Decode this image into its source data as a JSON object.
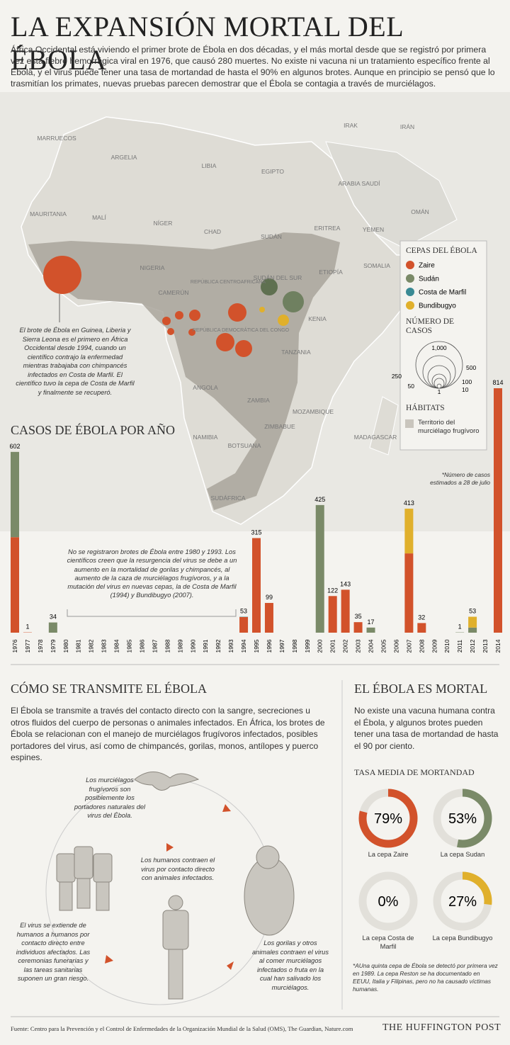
{
  "header": {
    "title": "LA EXPANSIÓN MORTAL DEL ÉBOLA",
    "intro": "África Occidental está viviendo el primer brote de Ébola en dos décadas, y el más mortal desde que se registró por primera vez esta fiebre hemorrágica viral en 1976, que causó 280 muertes. No existe ni vacuna ni un tratamiento específico frente al Ébola, y el virus puede tener una tasa de mortandad de hasta el 90% en algunos brotes. Aunque en principio se pensó que lo trasmitían los primates, nuevas pruebas parecen demostrar que el Ébola se contagia a través de murciélagos."
  },
  "map": {
    "labels": [
      "MARRUECOS",
      "ARGELIA",
      "LIBIA",
      "EGIPTO",
      "IRAK",
      "IRÁN",
      "ARABIA SAUDÍ",
      "MAURITANIA",
      "MALÍ",
      "NÍGER",
      "CHAD",
      "SUDÁN",
      "ERITREA",
      "YEMEN",
      "OMÁN",
      "ETIOPÍA",
      "SOMALIA",
      "NIGERIA",
      "REPÚBLICA CENTROAFRICANA",
      "SUDÁN DEL SUR",
      "CAMERÚN",
      "KENIA",
      "REPÚBLICA DEMOCRÁTICA DEL CONGO",
      "TANZANIA",
      "ANGOLA",
      "ZAMBIA",
      "MOZAMBIQUE",
      "NAMIBIA",
      "BOTSUANA",
      "ZIMBABUE",
      "MADAGASCAR",
      "SUDÁFRICA"
    ],
    "annotation": "El brote de Ébola en Guinea, Liberia y Sierra Leona es el primero en África Occidental desde 1994, cuando un científico contrajo la enfermedad mientras trabajaba con chimpancés infectados en Costa de Marfil. El científico tuvo la cepa de Costa de Marfil y finalmente se recuperó.",
    "legend_title": "CEPAS DEL ÉBOLA",
    "cases_title": "NÚMERO DE CASOS",
    "cases_labels": [
      "1,000",
      "500",
      "250",
      "100",
      "50",
      "10",
      "1"
    ],
    "habitat_title": "HÁBITATS",
    "habitat_label": "Territorio del murciélago frugívoro"
  },
  "chart_data": [
    {
      "type": "stacked-bar",
      "title": "CASOS DE ÉBOLA POR AÑO",
      "categories": [
        "1976",
        "1977",
        "1978",
        "1979",
        "1980",
        "1981",
        "1982",
        "1983",
        "1984",
        "1985",
        "1986",
        "1987",
        "1988",
        "1989",
        "1990",
        "1991",
        "1992",
        "1993",
        "1994",
        "1995",
        "1996",
        "1997",
        "1998",
        "1999",
        "2000",
        "2001",
        "2002",
        "2003",
        "2004",
        "2005",
        "2006",
        "2007",
        "2008",
        "2009",
        "2010",
        "2011",
        "2012",
        "2013",
        "2014"
      ],
      "series": [
        {
          "name": "Zaire",
          "color": "#d2522b",
          "values": [
            318,
            1,
            null,
            null,
            null,
            null,
            null,
            null,
            null,
            null,
            null,
            null,
            null,
            null,
            null,
            null,
            null,
            null,
            52,
            315,
            99,
            null,
            null,
            null,
            null,
            122,
            143,
            35,
            null,
            null,
            null,
            264,
            32,
            null,
            null,
            null,
            null,
            null,
            814
          ]
        },
        {
          "name": "Sudán",
          "color": "#7a8a68",
          "values": [
            284,
            null,
            null,
            34,
            null,
            null,
            null,
            null,
            null,
            null,
            null,
            null,
            null,
            null,
            null,
            null,
            null,
            null,
            null,
            null,
            null,
            null,
            null,
            null,
            425,
            null,
            null,
            null,
            17,
            null,
            null,
            null,
            null,
            null,
            null,
            1,
            17,
            null,
            null
          ]
        },
        {
          "name": "Costa de Marfil",
          "color": "#3a8a94",
          "values": [
            null,
            null,
            null,
            null,
            null,
            null,
            null,
            null,
            null,
            null,
            null,
            null,
            null,
            null,
            null,
            null,
            null,
            null,
            1,
            null,
            null,
            null,
            null,
            null,
            null,
            null,
            null,
            null,
            null,
            null,
            null,
            null,
            null,
            null,
            null,
            null,
            null,
            null,
            null
          ]
        },
        {
          "name": "Bundibugyo",
          "color": "#e0b02c",
          "values": [
            null,
            null,
            null,
            null,
            null,
            null,
            null,
            null,
            null,
            null,
            null,
            null,
            null,
            null,
            null,
            null,
            null,
            null,
            null,
            null,
            null,
            null,
            null,
            null,
            null,
            null,
            null,
            null,
            null,
            null,
            null,
            149,
            null,
            null,
            null,
            null,
            36,
            null,
            null
          ]
        }
      ],
      "totals": [
        602,
        1,
        null,
        34,
        null,
        null,
        null,
        null,
        null,
        null,
        null,
        null,
        null,
        null,
        null,
        null,
        null,
        null,
        53,
        315,
        99,
        null,
        null,
        null,
        425,
        122,
        143,
        35,
        17,
        null,
        null,
        413,
        32,
        null,
        null,
        1,
        53,
        null,
        814
      ],
      "ylim": [
        0,
        814
      ],
      "annotations": [
        "No se registraron brotes de Ébola entre 1980 y 1993. Los científicos creen que la resurgencia del virus se debe a un aumento en la mortalidad de gorilas y chimpancés, al aumento de la caza de murciélagos frugívoros, y a la mutación del virus en nuevas cepas, la de Costa de Marfil (1994) y Bundibugyo (2007).",
        "*Número de casos estimados a 28 de julio"
      ]
    },
    {
      "type": "donut",
      "title": "TASA MEDIA DE MORTANDAD",
      "categories": [
        "La cepa Zaire",
        "La cepa Sudan",
        "La cepa Costa de Marfil",
        "La cepa Bundibugyo"
      ],
      "values": [
        79,
        53,
        0,
        27
      ],
      "value_labels": [
        "79%",
        "53%",
        "0%",
        "27%"
      ],
      "colors": [
        "#d2522b",
        "#7a8a68",
        "#3a8a94",
        "#e0b02c"
      ],
      "ylim": [
        0,
        100
      ],
      "footnote": "*AUna quinta cepa de Ébola se detectó por primera vez en 1989. La cepa Reston se ha documentado en EEUU, Italia y Filipinas, pero no ha causado víctimas humanas."
    }
  ],
  "transmission": {
    "title": "CÓMO SE TRANSMITE EL ÉBOLA",
    "text": "El Ébola se transmite a través del contacto directo con la sangre, secreciones u otros fluidos del cuerpo de personas o animales infectados. En África, los brotes de Ébola se relacionan con el manejo de murciélagos frugívoros infectados, posibles portadores del virus, así como de chimpancés, gorilas, monos, antílopes y puerco espines.",
    "steps": [
      "Los murciélagos frugívoros son posiblemente los portadores naturales del virus del Ébola.",
      "Los humanos contraen el virus por contacto directo con animales infectados.",
      "Los gorilas y otros animales contraen el virus al comer murciélagos infectados o fruta en la cual han salivado los murciélagos.",
      "El virus se extiende de humanos a humanos por contacto directo entre individuos afectados. Las ceremonias funerarias y las tareas sanitarias suponen un gran riesgo."
    ]
  },
  "mortal": {
    "title": "EL ÉBOLA ES MORTAL",
    "text": "No existe una vacuna humana contra el Ébola, y algunos brotes pueden tener una tasa de mortandad de hasta el 90 por ciento."
  },
  "footer": {
    "source": "Fuente: Centro para la Prevención y el Control de Enfermedades de la Organización Mundial de la Salud (OMS), The Guardian, Nature.com",
    "brand": "THE HUFFINGTON POST"
  }
}
